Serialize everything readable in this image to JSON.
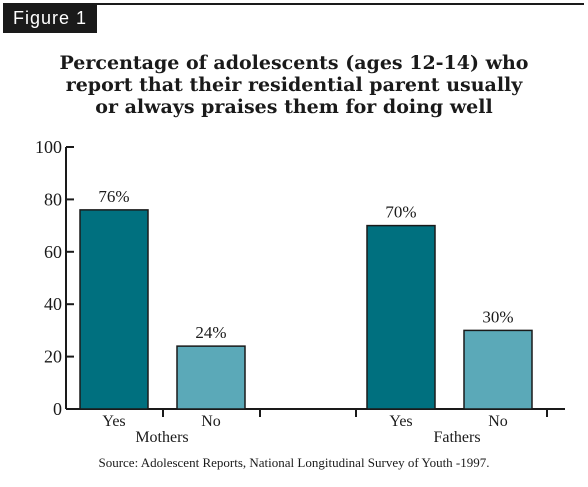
{
  "figure_label": "Figure 1",
  "source": "Source: Adolescent Reports, National Longitudinal Survey of Youth -1997.",
  "colors": {
    "yes": "#00707f",
    "no": "#5ba9b8",
    "ink": "#1a1a1a"
  },
  "chart_data": {
    "type": "bar",
    "title_lines": [
      "Percentage of adolescents (ages 12-14) who",
      "report that their residential parent usually",
      "or always praises them for doing well"
    ],
    "groups": [
      "Mothers",
      "Fathers"
    ],
    "categories": [
      "Yes",
      "No"
    ],
    "series": [
      {
        "group": "Mothers",
        "values": [
          76,
          24
        ],
        "labels": [
          "76%",
          "24%"
        ]
      },
      {
        "group": "Fathers",
        "values": [
          70,
          30
        ],
        "labels": [
          "70%",
          "30%"
        ]
      }
    ],
    "yticks": [
      0,
      20,
      40,
      60,
      80,
      100
    ],
    "ylim": [
      0,
      100
    ],
    "xlabel": "",
    "ylabel": "",
    "grid": false
  }
}
